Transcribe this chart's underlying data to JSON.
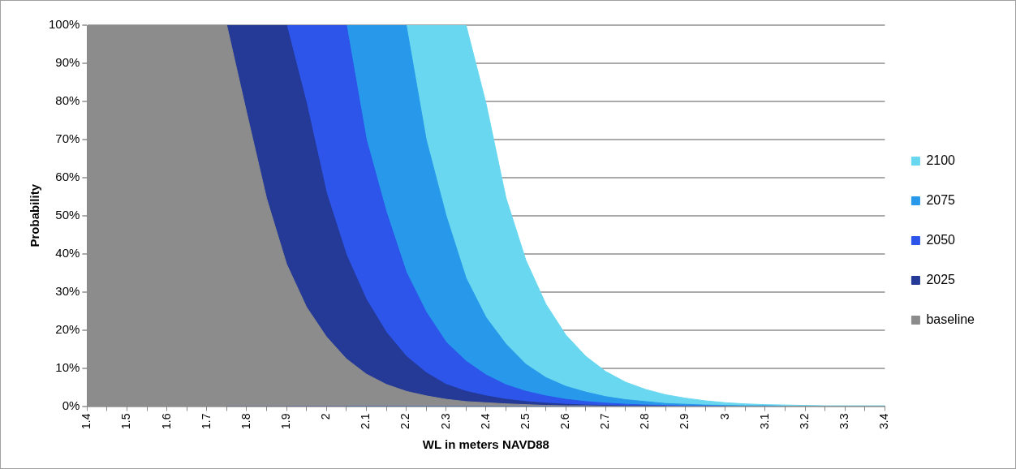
{
  "chart_data": {
    "type": "area",
    "xlabel": "WL in meters NAVD88",
    "ylabel": "Probability",
    "x": [
      1.4,
      1.45,
      1.5,
      1.55,
      1.6,
      1.65,
      1.7,
      1.75,
      1.8,
      1.85,
      1.9,
      1.95,
      2.0,
      2.05,
      2.1,
      2.15,
      2.2,
      2.25,
      2.3,
      2.35,
      2.4,
      2.45,
      2.5,
      2.55,
      2.6,
      2.65,
      2.7,
      2.75,
      2.8,
      2.85,
      2.9,
      2.95,
      3.0,
      3.05,
      3.1,
      3.15,
      3.2,
      3.25,
      3.3,
      3.35,
      3.4
    ],
    "series": [
      {
        "name": "2100",
        "color": "#69d7ef",
        "values": [
          null,
          null,
          null,
          null,
          null,
          null,
          null,
          null,
          null,
          null,
          null,
          null,
          null,
          null,
          null,
          null,
          100,
          100,
          100,
          100,
          79.5,
          54.7,
          38.3,
          26.8,
          18.7,
          13.1,
          9.1,
          6.3,
          4.4,
          3.0,
          2.1,
          1.4,
          0.9,
          0.6,
          0.4,
          0.3,
          0.2,
          0.1,
          0.1,
          0.1,
          0.1
        ]
      },
      {
        "name": "2075",
        "color": "#2899ea",
        "values": [
          null,
          null,
          null,
          null,
          null,
          null,
          null,
          null,
          null,
          null,
          null,
          null,
          null,
          100,
          100,
          100,
          100,
          70,
          50,
          33.6,
          23.3,
          16.3,
          11,
          7.5,
          5.2,
          3.7,
          2.5,
          1.7,
          1.2,
          0.7,
          0.5,
          0.3,
          0.2,
          0.1,
          0.1,
          0,
          null,
          null,
          null,
          null,
          null
        ]
      },
      {
        "name": "2050",
        "color": "#2d55ea",
        "values": [
          null,
          null,
          null,
          null,
          null,
          null,
          null,
          null,
          null,
          null,
          100,
          100,
          100,
          100,
          70,
          51,
          35.2,
          24.7,
          16.8,
          11.8,
          8.2,
          5.6,
          3.9,
          2.7,
          1.8,
          1.2,
          0.8,
          0.5,
          0.3,
          0.2,
          0.1,
          0.1,
          0,
          null,
          null,
          null,
          null,
          null,
          null,
          null,
          null
        ]
      },
      {
        "name": "2025",
        "color": "#253a96",
        "values": [
          null,
          null,
          null,
          null,
          null,
          null,
          null,
          100,
          100,
          100,
          100,
          79.5,
          56,
          39.7,
          28,
          19.4,
          13.1,
          8.8,
          5.7,
          3.9,
          2.7,
          1.8,
          1.2,
          0.8,
          0.5,
          0.3,
          0.2,
          0.1,
          0.1,
          0,
          null,
          null,
          null,
          null,
          null,
          null,
          null,
          null,
          null,
          null,
          null
        ]
      },
      {
        "name": "baseline",
        "color": "#8c8c8c",
        "values": [
          100,
          100,
          100,
          100,
          100,
          100,
          100,
          100,
          77,
          54.5,
          37.3,
          26,
          18.2,
          12.4,
          8.4,
          5.7,
          3.9,
          2.7,
          1.8,
          1.2,
          0.9,
          0.6,
          0.4,
          0.2,
          0.1,
          0.1,
          0,
          0,
          0,
          0,
          0,
          0,
          0,
          0,
          0,
          0,
          0,
          0,
          0,
          0,
          0
        ]
      }
    ],
    "xlim": [
      1.4,
      3.4
    ],
    "xticks": [
      1.4,
      {
        "value": 1.45,
        "label": null
      },
      1.5,
      {
        "value": 1.55,
        "label": null
      },
      1.6,
      {
        "value": 1.65,
        "label": null
      },
      1.7,
      {
        "value": 1.75,
        "label": null
      },
      1.8,
      {
        "value": 1.85,
        "label": null
      },
      1.9,
      {
        "value": 1.95,
        "label": null
      },
      2,
      {
        "value": 2.05,
        "label": null
      },
      2.1,
      {
        "value": 2.15,
        "label": null
      },
      2.2,
      {
        "value": 2.25,
        "label": null
      },
      2.3,
      {
        "value": 2.35,
        "label": null
      },
      2.4,
      {
        "value": 2.45,
        "label": null
      },
      2.5,
      {
        "value": 2.55,
        "label": null
      },
      2.6,
      {
        "value": 2.65,
        "label": null
      },
      2.7,
      {
        "value": 2.75,
        "label": null
      },
      2.8,
      {
        "value": 2.85,
        "label": null
      },
      2.9,
      {
        "value": 2.95,
        "label": null
      },
      3,
      {
        "value": 3.05,
        "label": null
      },
      3.1,
      {
        "value": 3.15,
        "label": null
      },
      3.2,
      {
        "value": 3.25,
        "label": null
      },
      3.3,
      {
        "value": 3.35,
        "label": null
      },
      3.4
    ],
    "ylim": [
      0,
      100
    ],
    "yticks": [
      {
        "value": 0,
        "label": "0%"
      },
      {
        "value": 10,
        "label": "10%"
      },
      {
        "value": 20,
        "label": "20%"
      },
      {
        "value": 30,
        "label": "30%"
      },
      {
        "value": 40,
        "label": "40%"
      },
      {
        "value": 50,
        "label": "50%"
      },
      {
        "value": 60,
        "label": "60%"
      },
      {
        "value": 70,
        "label": "70%"
      },
      {
        "value": 80,
        "label": "80%"
      },
      {
        "value": 90,
        "label": "90%"
      },
      {
        "value": 100,
        "label": "100%"
      }
    ],
    "grid": "y",
    "legend": "right"
  }
}
